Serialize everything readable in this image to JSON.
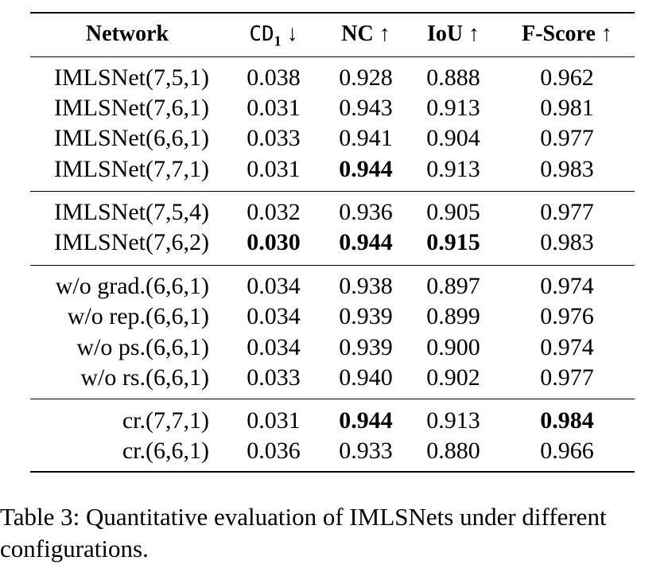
{
  "table": {
    "headers": {
      "network": "Network",
      "cd_main": "CD",
      "cd_sub": "1",
      "cd_arrow": " ↓",
      "nc": "NC ↑",
      "iou": "IoU ↑",
      "fscore": "F-Score ↑"
    },
    "rows": [
      {
        "network": "IMLSNet(7,5,1)",
        "cd": "0.038",
        "nc": "0.928",
        "iou": "0.888",
        "f": "0.962",
        "bold": []
      },
      {
        "network": "IMLSNet(7,6,1)",
        "cd": "0.031",
        "nc": "0.943",
        "iou": "0.913",
        "f": "0.981",
        "bold": []
      },
      {
        "network": "IMLSNet(6,6,1)",
        "cd": "0.033",
        "nc": "0.941",
        "iou": "0.904",
        "f": "0.977",
        "bold": []
      },
      {
        "network": "IMLSNet(7,7,1)",
        "cd": "0.031",
        "nc": "0.944",
        "iou": "0.913",
        "f": "0.983",
        "bold": [
          "nc"
        ]
      },
      {
        "network": "IMLSNet(7,5,4)",
        "cd": "0.032",
        "nc": "0.936",
        "iou": "0.905",
        "f": "0.977",
        "bold": []
      },
      {
        "network": "IMLSNet(7,6,2)",
        "cd": "0.030",
        "nc": "0.944",
        "iou": "0.915",
        "f": "0.983",
        "bold": [
          "cd",
          "nc",
          "iou"
        ]
      },
      {
        "network": "w/o grad.(6,6,1)",
        "cd": "0.034",
        "nc": "0.938",
        "iou": "0.897",
        "f": "0.974",
        "bold": []
      },
      {
        "network": "w/o rep.(6,6,1)",
        "cd": "0.034",
        "nc": "0.939",
        "iou": "0.899",
        "f": "0.976",
        "bold": []
      },
      {
        "network": "w/o ps.(6,6,1)",
        "cd": "0.034",
        "nc": "0.939",
        "iou": "0.900",
        "f": "0.974",
        "bold": []
      },
      {
        "network": "w/o rs.(6,6,1)",
        "cd": "0.033",
        "nc": "0.940",
        "iou": "0.902",
        "f": "0.977",
        "bold": []
      },
      {
        "network": "cr.(7,7,1)",
        "cd": "0.031",
        "nc": "0.944",
        "iou": "0.913",
        "f": "0.984",
        "bold": [
          "nc",
          "f"
        ]
      },
      {
        "network": "cr.(6,6,1)",
        "cd": "0.036",
        "nc": "0.933",
        "iou": "0.880",
        "f": "0.966",
        "bold": []
      }
    ]
  },
  "caption": {
    "line1": "Table 3:  Quantitative evaluation of IMLSNets under different",
    "line2": "configurations."
  }
}
